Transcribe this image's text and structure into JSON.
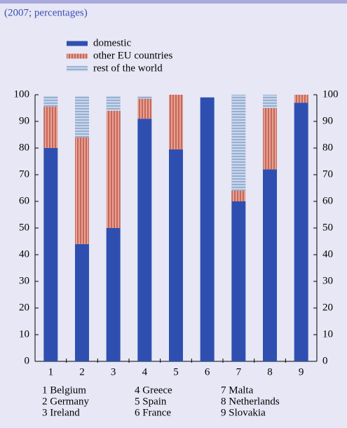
{
  "chart_data": {
    "type": "stacked-bar",
    "subtitle": "(2007; percentages)",
    "categories": [
      "1",
      "2",
      "3",
      "4",
      "5",
      "6",
      "7",
      "8",
      "9"
    ],
    "series": [
      {
        "name": "domestic",
        "color": "#2f4fb0",
        "pattern": "solid",
        "values": [
          80,
          44,
          50,
          91,
          79.5,
          99,
          60,
          72,
          97
        ]
      },
      {
        "name": "other EU countries",
        "color": "#e8a090",
        "pattern": "vertical-lines",
        "values": [
          15.5,
          40,
          44,
          7.5,
          20.5,
          0,
          4,
          23,
          3
        ]
      },
      {
        "name": "rest of the world",
        "color": "#c8d8ec",
        "pattern": "horizontal-lines",
        "values": [
          4,
          15.5,
          5.5,
          1,
          0,
          0,
          36,
          5,
          0
        ]
      }
    ],
    "ylim": [
      0,
      100
    ],
    "yticks": [
      0,
      10,
      20,
      30,
      40,
      50,
      60,
      70,
      80,
      90,
      100
    ],
    "notes": [
      "1 Belgium",
      "2 Germany",
      "3 Ireland",
      "4 Greece",
      "5 Spain",
      "6 France",
      "7 Malta",
      "8 Netherlands",
      "9 Slovakia"
    ]
  }
}
